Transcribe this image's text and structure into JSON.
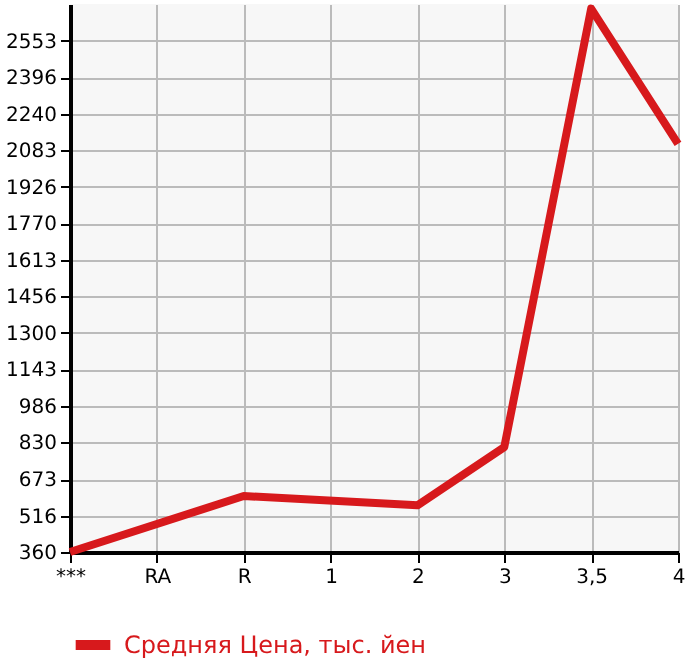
{
  "chart_data": {
    "type": "line",
    "categories": [
      "***",
      "RA",
      "R",
      "1",
      "2",
      "3",
      "3,5",
      "4"
    ],
    "series": [
      {
        "name": "Средняя Цена, тыс. йен",
        "color": "#d7191c",
        "values": [
          360,
          null,
          600,
          null,
          560,
          810,
          2690,
          2110
        ]
      }
    ],
    "ylim": [
      360,
      2710
    ],
    "yticks": [
      360,
      516,
      673,
      830,
      986,
      1143,
      1300,
      1456,
      1613,
      1770,
      1926,
      2083,
      2240,
      2396,
      2553
    ],
    "grid": true,
    "legend": "bottom",
    "marker": "none",
    "line_style": "solid"
  }
}
